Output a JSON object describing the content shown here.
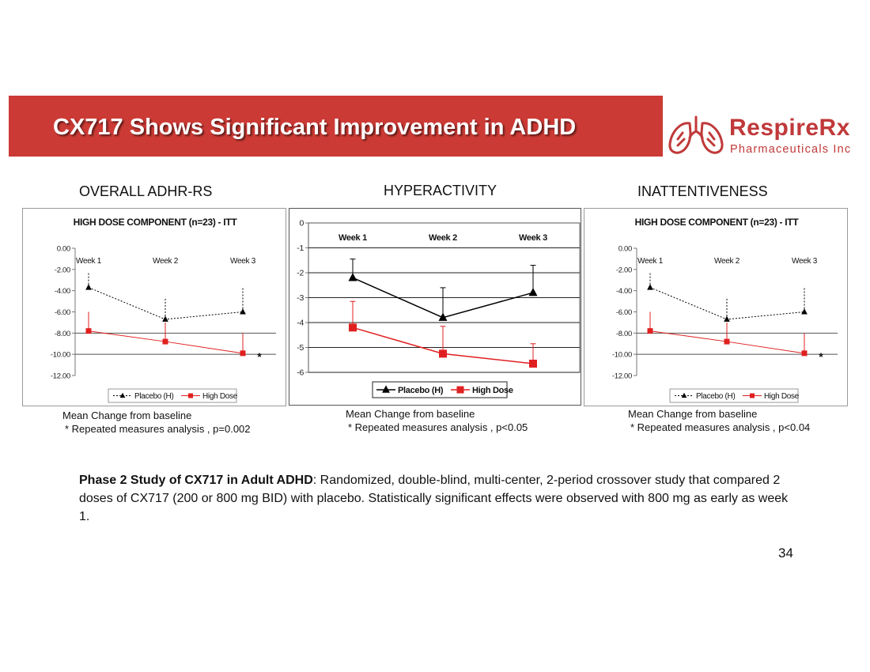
{
  "header": {
    "title": "CX717 Shows Significant Improvement in ADHD",
    "colors": {
      "banner": "#cc3a35",
      "brand": "#c0393a"
    }
  },
  "logo": {
    "name": "RespireRx",
    "subtitle": "Pharmaceuticals Inc"
  },
  "panels": {
    "overall": {
      "title": "OVERALL ADHR-RS",
      "note_line1": "Mean Change from baseline",
      "note_line2": "* Repeated measures analysis , p=0.002"
    },
    "hyper": {
      "title": "HYPERACTIVITY",
      "note_line1": "Mean Change from baseline",
      "note_line2": "* Repeated measures analysis , p<0.05"
    },
    "inatt": {
      "title": "INATTENTIVENESS",
      "note_line1": "Mean Change from baseline",
      "note_line2": "* Repeated measures analysis , p<0.04"
    }
  },
  "chart_data": [
    {
      "id": "overall",
      "type": "line",
      "title": "HIGH DOSE COMPONENT (n=23) - ITT",
      "categories": [
        "Week 1",
        "Week 2",
        "Week 3"
      ],
      "yticks": [
        "0.00",
        "-2.00",
        "-4.00",
        "-6.00",
        "-8.00",
        "-10.00",
        "-12.00"
      ],
      "ylim": [
        -12,
        0
      ],
      "grid_lines": [
        -8,
        -10
      ],
      "annotation": "*",
      "series": [
        {
          "name": "Placebo (H)",
          "values": [
            -3.7,
            -6.7,
            -6.0
          ],
          "error_to": [
            -2.3,
            -4.6,
            -3.7
          ],
          "color": "#000000",
          "dash": true,
          "marker": "triangle"
        },
        {
          "name": "High Dose",
          "values": [
            -7.8,
            -8.8,
            -9.9
          ],
          "error_to": [
            -6.0,
            -7.0,
            -8.0
          ],
          "color": "#e02020",
          "dash": false,
          "marker": "square"
        }
      ]
    },
    {
      "id": "hyper",
      "type": "line",
      "title": "",
      "categories": [
        "Week 1",
        "Week 2",
        "Week 3"
      ],
      "yticks": [
        "0",
        "-1",
        "-2",
        "-3",
        "-4",
        "-5",
        "-6"
      ],
      "ylim": [
        -6,
        0
      ],
      "grid_lines": [
        -1,
        -2,
        -3,
        -4,
        -5,
        -6
      ],
      "annotation": "",
      "series": [
        {
          "name": "Placebo (H)",
          "values": [
            -2.2,
            -3.8,
            -2.8
          ],
          "error_to": [
            -1.45,
            -2.6,
            -1.7
          ],
          "color": "#000000",
          "dash": false,
          "marker": "triangle"
        },
        {
          "name": "High Dose",
          "values": [
            -4.2,
            -5.25,
            -5.65
          ],
          "error_to": [
            -3.15,
            -4.15,
            -4.85
          ],
          "color": "#e02020",
          "dash": false,
          "marker": "square"
        }
      ]
    },
    {
      "id": "inatt",
      "type": "line",
      "title": "HIGH DOSE COMPONENT (n=23) - ITT",
      "categories": [
        "Week 1",
        "Week 2",
        "Week 3"
      ],
      "yticks": [
        "0.00",
        "-2.00",
        "-4.00",
        "-6.00",
        "-8.00",
        "-10.00",
        "-12.00"
      ],
      "ylim": [
        -12,
        0
      ],
      "grid_lines": [
        -8,
        -10
      ],
      "annotation": "*",
      "series": [
        {
          "name": "Placebo (H)",
          "values": [
            -3.7,
            -6.7,
            -6.0
          ],
          "error_to": [
            -2.3,
            -4.6,
            -3.7
          ],
          "color": "#000000",
          "dash": true,
          "marker": "triangle"
        },
        {
          "name": "High Dose",
          "values": [
            -7.8,
            -8.8,
            -9.9
          ],
          "error_to": [
            -6.0,
            -7.0,
            -8.0
          ],
          "color": "#e02020",
          "dash": false,
          "marker": "square"
        }
      ]
    }
  ],
  "description": {
    "lead": "Phase 2 Study of CX717 in Adult ADHD",
    "text": ": Randomized, double-blind, multi-center, 2-period crossover study that compared 2 doses of CX717 (200 or 800 mg BID) with placebo. Statistically significant effects were observed with 800 mg as early as week 1."
  },
  "page_number": "34"
}
